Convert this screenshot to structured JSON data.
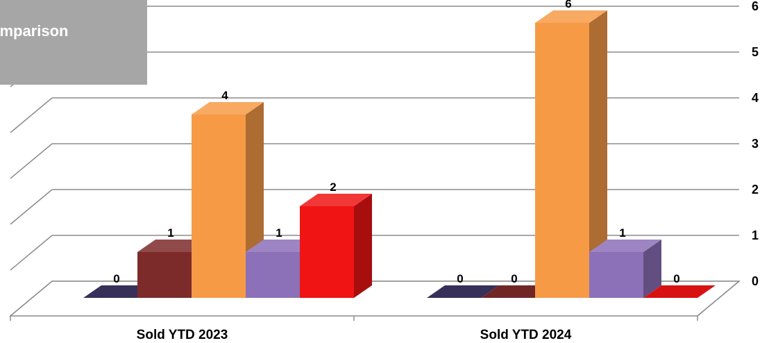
{
  "chart_data": {
    "type": "bar",
    "title": "omparison",
    "categories": [
      "Sold YTD 2023",
      "Sold YTD 2024"
    ],
    "series": [
      {
        "values": [
          0,
          0
        ],
        "color": "#3d3563"
      },
      {
        "values": [
          1,
          0
        ],
        "color": "#7d2a2a"
      },
      {
        "values": [
          4,
          6
        ],
        "color": "#f79a46"
      },
      {
        "values": [
          1,
          1
        ],
        "color": "#8c70b8"
      },
      {
        "values": [
          2,
          0
        ],
        "color": "#f01414"
      }
    ],
    "data_labels": [
      [
        "0",
        "1",
        "4",
        "1",
        "2"
      ],
      [
        "0",
        "0",
        "6",
        "1",
        "0"
      ]
    ],
    "ylim": [
      0,
      6
    ],
    "yticks": [
      "0",
      "1",
      "2",
      "3",
      "4",
      "5",
      "6"
    ],
    "grid": true,
    "axis_position": "right",
    "style": "3d-clustered-column"
  }
}
